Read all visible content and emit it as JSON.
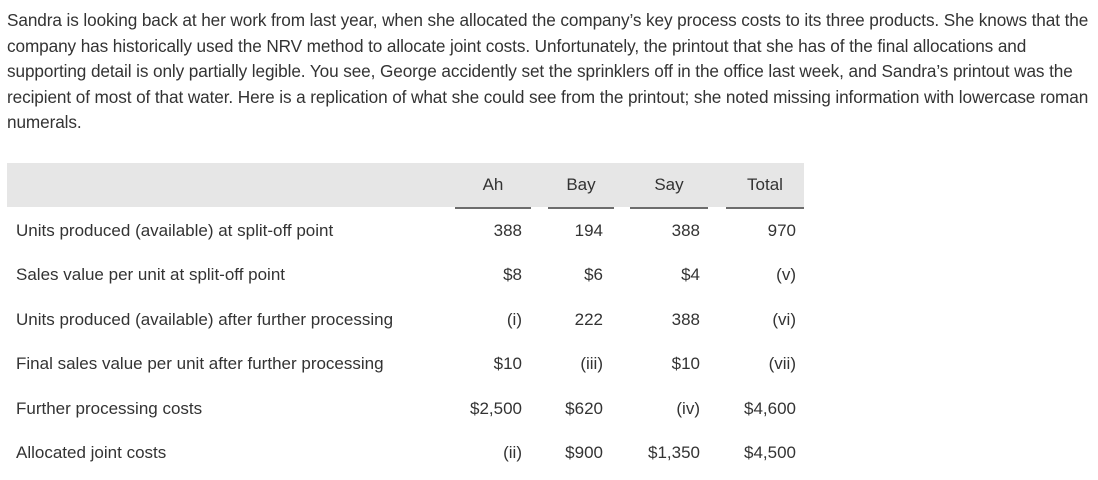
{
  "intro": {
    "text": "Sandra is looking back at her work from last year, when she allocated the company’s key process costs to its three products. She knows that the company has historically used the NRV method to allocate joint costs. Unfortunately, the printout that she has of the final allocations and supporting detail is only partially legible. You see, George accidently set the sprinklers off in the office last week, and Sandra’s printout was the recipient of most of that water. Here is a replication of what she could see from the printout; she noted missing information with lowercase roman numerals."
  },
  "table": {
    "headers": [
      "",
      "Ah",
      "Bay",
      "Say",
      "Total"
    ],
    "rows": [
      {
        "label": "Units produced (available) at split-off point",
        "values": [
          "388",
          "194",
          "388",
          "970"
        ]
      },
      {
        "label": "Sales value per unit at split-off point",
        "values": [
          "$8",
          "$6",
          "$4",
          "(v)"
        ]
      },
      {
        "label": "Units produced (available) after further processing",
        "values": [
          "(i)",
          "222",
          "388",
          "(vi)"
        ]
      },
      {
        "label": "Final sales value per unit after further processing",
        "values": [
          "$10",
          "(iii)",
          "$10",
          "(vii)"
        ]
      },
      {
        "label": "Further processing costs",
        "values": [
          "$2,500",
          "$620",
          "(iv)",
          "$4,600"
        ]
      },
      {
        "label": "Allocated joint costs",
        "values": [
          "(ii)",
          "$900",
          "$1,350",
          "$4,500"
        ]
      }
    ]
  }
}
